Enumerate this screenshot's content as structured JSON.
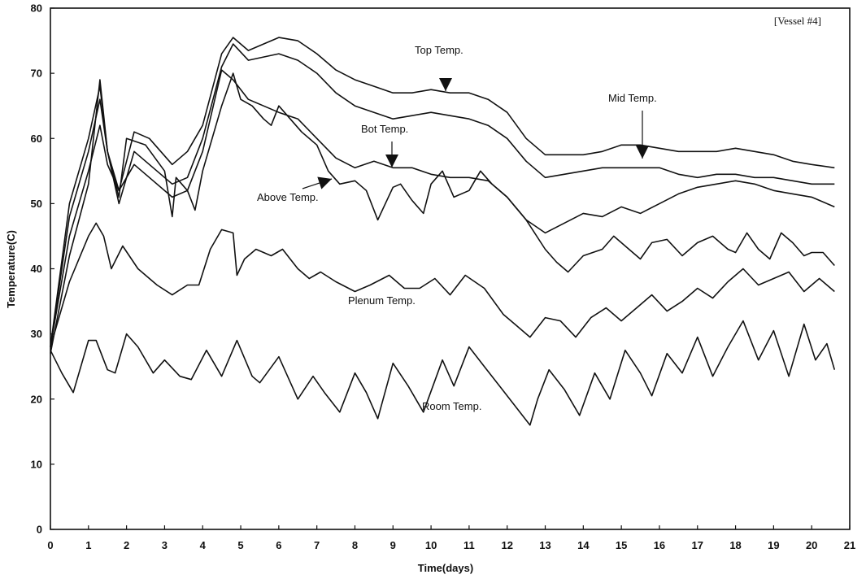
{
  "chart_data": {
    "type": "line",
    "corner_label": "[Vessel #4]",
    "xlabel": "Time(days)",
    "ylabel": "Temperature(C)",
    "xlim": [
      0,
      21
    ],
    "ylim": [
      0,
      80
    ],
    "x_ticks": [
      "0",
      "1",
      "2",
      "3",
      "4",
      "5",
      "6",
      "7",
      "8",
      "9",
      "10",
      "11",
      "12",
      "13",
      "14",
      "15",
      "16",
      "17",
      "18",
      "19",
      "20",
      "21"
    ],
    "y_ticks": [
      "0",
      "10",
      "20",
      "30",
      "40",
      "50",
      "60",
      "70",
      "80"
    ],
    "grid": false,
    "series": [
      {
        "name": "Top Temp.",
        "points": [
          [
            0,
            28
          ],
          [
            0.5,
            50
          ],
          [
            1,
            60
          ],
          [
            1.3,
            68
          ],
          [
            1.5,
            58
          ],
          [
            1.8,
            52
          ],
          [
            2.2,
            61
          ],
          [
            2.6,
            60
          ],
          [
            3.2,
            56
          ],
          [
            3.6,
            58
          ],
          [
            4,
            62
          ],
          [
            4.5,
            73
          ],
          [
            4.8,
            75.5
          ],
          [
            5.2,
            73.5
          ],
          [
            5.6,
            74.5
          ],
          [
            6,
            75.5
          ],
          [
            6.5,
            75
          ],
          [
            7,
            73
          ],
          [
            7.5,
            70.5
          ],
          [
            8,
            69
          ],
          [
            8.5,
            68
          ],
          [
            9,
            67
          ],
          [
            9.5,
            67
          ],
          [
            10,
            67.5
          ],
          [
            10.5,
            67
          ],
          [
            11,
            67
          ],
          [
            11.5,
            66
          ],
          [
            12,
            64
          ],
          [
            12.5,
            60
          ],
          [
            13,
            57.5
          ],
          [
            13.5,
            57.5
          ],
          [
            14,
            57.5
          ],
          [
            14.5,
            58
          ],
          [
            15,
            59
          ],
          [
            15.5,
            59
          ],
          [
            16,
            58.5
          ],
          [
            16.5,
            58
          ],
          [
            17,
            58
          ],
          [
            17.5,
            58
          ],
          [
            18,
            58.5
          ],
          [
            18.5,
            58
          ],
          [
            19,
            57.5
          ],
          [
            19.5,
            56.5
          ],
          [
            20,
            56
          ],
          [
            20.6,
            55.5
          ]
        ]
      },
      {
        "name": "Mid Temp.",
        "points": [
          [
            0,
            28
          ],
          [
            0.5,
            48
          ],
          [
            1,
            58
          ],
          [
            1.3,
            66
          ],
          [
            1.5,
            58
          ],
          [
            1.8,
            50
          ],
          [
            2.2,
            58
          ],
          [
            2.6,
            56
          ],
          [
            3.2,
            53
          ],
          [
            3.6,
            54
          ],
          [
            4,
            60
          ],
          [
            4.5,
            71
          ],
          [
            4.8,
            74.5
          ],
          [
            5.2,
            72
          ],
          [
            5.6,
            72.5
          ],
          [
            6,
            73
          ],
          [
            6.5,
            72
          ],
          [
            7,
            70
          ],
          [
            7.5,
            67
          ],
          [
            8,
            65
          ],
          [
            8.5,
            64
          ],
          [
            9,
            63
          ],
          [
            9.5,
            63.5
          ],
          [
            10,
            64
          ],
          [
            10.5,
            63.5
          ],
          [
            11,
            63
          ],
          [
            11.5,
            62
          ],
          [
            12,
            60
          ],
          [
            12.5,
            56.5
          ],
          [
            13,
            54
          ],
          [
            13.5,
            54.5
          ],
          [
            14,
            55
          ],
          [
            14.5,
            55.5
          ],
          [
            15,
            55.5
          ],
          [
            15.5,
            55.5
          ],
          [
            16,
            55.5
          ],
          [
            16.5,
            54.5
          ],
          [
            17,
            54
          ],
          [
            17.5,
            54.5
          ],
          [
            18,
            54.5
          ],
          [
            18.5,
            54
          ],
          [
            19,
            54
          ],
          [
            19.5,
            53.5
          ],
          [
            20,
            53
          ],
          [
            20.6,
            53
          ]
        ]
      },
      {
        "name": "Bot Temp.",
        "points": [
          [
            0,
            28
          ],
          [
            0.5,
            45
          ],
          [
            1,
            55
          ],
          [
            1.3,
            62
          ],
          [
            1.5,
            56
          ],
          [
            1.8,
            52
          ],
          [
            2.2,
            56
          ],
          [
            2.6,
            54
          ],
          [
            3.2,
            51
          ],
          [
            3.6,
            52
          ],
          [
            4,
            58
          ],
          [
            4.5,
            70.5
          ],
          [
            4.8,
            69
          ],
          [
            5.2,
            66
          ],
          [
            5.6,
            65
          ],
          [
            6,
            64
          ],
          [
            6.5,
            63
          ],
          [
            7,
            60
          ],
          [
            7.5,
            57
          ],
          [
            8,
            55.5
          ],
          [
            8.5,
            56.5
          ],
          [
            9,
            55.5
          ],
          [
            9.5,
            55.5
          ],
          [
            10,
            54.5
          ],
          [
            10.5,
            54
          ],
          [
            11,
            54
          ],
          [
            11.5,
            53.5
          ],
          [
            12,
            51
          ],
          [
            12.5,
            47.5
          ],
          [
            13,
            45.5
          ],
          [
            13.5,
            47
          ],
          [
            14,
            48.5
          ],
          [
            14.5,
            48
          ],
          [
            15,
            49.5
          ],
          [
            15.5,
            48.5
          ],
          [
            16,
            50
          ],
          [
            16.5,
            51.5
          ],
          [
            17,
            52.5
          ],
          [
            17.5,
            53
          ],
          [
            18,
            53.5
          ],
          [
            18.5,
            53
          ],
          [
            19,
            52
          ],
          [
            19.5,
            51.5
          ],
          [
            20,
            51
          ],
          [
            20.6,
            49.5
          ]
        ]
      },
      {
        "name": "Above Temp.",
        "points": [
          [
            0,
            27
          ],
          [
            0.5,
            42
          ],
          [
            1,
            53
          ],
          [
            1.3,
            69
          ],
          [
            1.5,
            58
          ],
          [
            1.8,
            51
          ],
          [
            2,
            60
          ],
          [
            2.5,
            59
          ],
          [
            3,
            55
          ],
          [
            3.2,
            48
          ],
          [
            3.3,
            54
          ],
          [
            3.6,
            52
          ],
          [
            3.8,
            49
          ],
          [
            4,
            55
          ],
          [
            4.5,
            65
          ],
          [
            4.8,
            70
          ],
          [
            5,
            66
          ],
          [
            5.3,
            65
          ],
          [
            5.6,
            63
          ],
          [
            5.8,
            62
          ],
          [
            6,
            65
          ],
          [
            6.3,
            63
          ],
          [
            6.6,
            61
          ],
          [
            7,
            59
          ],
          [
            7.3,
            55
          ],
          [
            7.6,
            53
          ],
          [
            8,
            53.5
          ],
          [
            8.3,
            52
          ],
          [
            8.6,
            47.5
          ],
          [
            8.8,
            50
          ],
          [
            9,
            52.5
          ],
          [
            9.2,
            53
          ],
          [
            9.5,
            50.5
          ],
          [
            9.8,
            48.5
          ],
          [
            10,
            53
          ],
          [
            10.3,
            55
          ],
          [
            10.6,
            51
          ],
          [
            11,
            52
          ],
          [
            11.3,
            55
          ],
          [
            11.6,
            53
          ],
          [
            12,
            51
          ],
          [
            12.5,
            47.5
          ],
          [
            13,
            43
          ],
          [
            13.3,
            41
          ],
          [
            13.6,
            39.5
          ],
          [
            14,
            42
          ],
          [
            14.5,
            43
          ],
          [
            14.8,
            45
          ],
          [
            15.2,
            43
          ],
          [
            15.5,
            41.5
          ],
          [
            15.8,
            44
          ],
          [
            16.2,
            44.5
          ],
          [
            16.6,
            42
          ],
          [
            17,
            44
          ],
          [
            17.4,
            45
          ],
          [
            17.8,
            43
          ],
          [
            18,
            42.5
          ],
          [
            18.3,
            45.5
          ],
          [
            18.6,
            43
          ],
          [
            18.9,
            41.5
          ],
          [
            19.2,
            45.5
          ],
          [
            19.5,
            44
          ],
          [
            19.8,
            42
          ],
          [
            20,
            42.5
          ],
          [
            20.3,
            42.5
          ],
          [
            20.6,
            40.5
          ]
        ]
      },
      {
        "name": "Plenum Temp.",
        "points": [
          [
            0,
            28
          ],
          [
            0.5,
            38
          ],
          [
            1,
            45
          ],
          [
            1.2,
            47
          ],
          [
            1.4,
            45
          ],
          [
            1.6,
            40
          ],
          [
            1.9,
            43.5
          ],
          [
            2.3,
            40
          ],
          [
            2.8,
            37.5
          ],
          [
            3.2,
            36
          ],
          [
            3.6,
            37.5
          ],
          [
            3.9,
            37.5
          ],
          [
            4.2,
            43
          ],
          [
            4.5,
            46
          ],
          [
            4.8,
            45.5
          ],
          [
            4.9,
            39
          ],
          [
            5.1,
            41.5
          ],
          [
            5.4,
            43
          ],
          [
            5.8,
            42
          ],
          [
            6.1,
            43
          ],
          [
            6.5,
            40
          ],
          [
            6.8,
            38.5
          ],
          [
            7.1,
            39.5
          ],
          [
            7.5,
            38
          ],
          [
            8,
            36.5
          ],
          [
            8.4,
            37.5
          ],
          [
            8.9,
            39
          ],
          [
            9.3,
            37
          ],
          [
            9.7,
            37
          ],
          [
            10.1,
            38.5
          ],
          [
            10.5,
            36
          ],
          [
            10.9,
            39
          ],
          [
            11.4,
            37
          ],
          [
            11.9,
            33
          ],
          [
            12.3,
            31
          ],
          [
            12.6,
            29.5
          ],
          [
            13,
            32.5
          ],
          [
            13.4,
            32
          ],
          [
            13.8,
            29.5
          ],
          [
            14.2,
            32.5
          ],
          [
            14.6,
            34
          ],
          [
            15,
            32
          ],
          [
            15.4,
            34
          ],
          [
            15.8,
            36
          ],
          [
            16.2,
            33.5
          ],
          [
            16.6,
            35
          ],
          [
            17,
            37
          ],
          [
            17.4,
            35.5
          ],
          [
            17.8,
            38
          ],
          [
            18.2,
            40
          ],
          [
            18.6,
            37.5
          ],
          [
            19,
            38.5
          ],
          [
            19.4,
            39.5
          ],
          [
            19.8,
            36.5
          ],
          [
            20.2,
            38.5
          ],
          [
            20.6,
            36.5
          ]
        ]
      },
      {
        "name": "Room Temp.",
        "points": [
          [
            0,
            27.5
          ],
          [
            0.3,
            24
          ],
          [
            0.6,
            21
          ],
          [
            1,
            29
          ],
          [
            1.2,
            29
          ],
          [
            1.5,
            24.5
          ],
          [
            1.7,
            24
          ],
          [
            2,
            30
          ],
          [
            2.3,
            28
          ],
          [
            2.7,
            24
          ],
          [
            3,
            26
          ],
          [
            3.4,
            23.5
          ],
          [
            3.7,
            23
          ],
          [
            4.1,
            27.5
          ],
          [
            4.5,
            23.5
          ],
          [
            4.9,
            29
          ],
          [
            5.3,
            23.5
          ],
          [
            5.5,
            22.5
          ],
          [
            6,
            26.5
          ],
          [
            6.5,
            20
          ],
          [
            6.9,
            23.5
          ],
          [
            7.2,
            21
          ],
          [
            7.6,
            18
          ],
          [
            8,
            24
          ],
          [
            8.3,
            21
          ],
          [
            8.6,
            17
          ],
          [
            9,
            25.5
          ],
          [
            9.4,
            22
          ],
          [
            9.8,
            18
          ],
          [
            10.3,
            26
          ],
          [
            10.6,
            22
          ],
          [
            11,
            28
          ],
          [
            11.4,
            25
          ],
          [
            11.8,
            22
          ],
          [
            12.2,
            19
          ],
          [
            12.6,
            16
          ],
          [
            12.8,
            20
          ],
          [
            13.1,
            24.5
          ],
          [
            13.5,
            21.5
          ],
          [
            13.9,
            17.5
          ],
          [
            14.3,
            24
          ],
          [
            14.7,
            20
          ],
          [
            15.1,
            27.5
          ],
          [
            15.5,
            24
          ],
          [
            15.8,
            20.5
          ],
          [
            16.2,
            27
          ],
          [
            16.6,
            24
          ],
          [
            17,
            29.5
          ],
          [
            17.4,
            23.5
          ],
          [
            17.8,
            28
          ],
          [
            18.2,
            32
          ],
          [
            18.6,
            26
          ],
          [
            19,
            30.5
          ],
          [
            19.4,
            23.5
          ],
          [
            19.8,
            31.5
          ],
          [
            20.1,
            26
          ],
          [
            20.4,
            28.5
          ],
          [
            20.6,
            24.5
          ]
        ]
      }
    ],
    "annotations": [
      {
        "text": "Top Temp.",
        "x": 10.5,
        "y": 67
      },
      {
        "text": "Mid Temp.",
        "x": 15.5,
        "y": 58.5
      },
      {
        "text": "Bot Temp.",
        "x": 9,
        "y": 55.5
      },
      {
        "text": "Above Temp.",
        "x": 7.5,
        "y": 53.5
      },
      {
        "text": "Plenum Temp.",
        "x": 9.2,
        "y": 35.5
      },
      {
        "text": "Room Temp.",
        "x": 11,
        "y": 19.5
      }
    ]
  }
}
